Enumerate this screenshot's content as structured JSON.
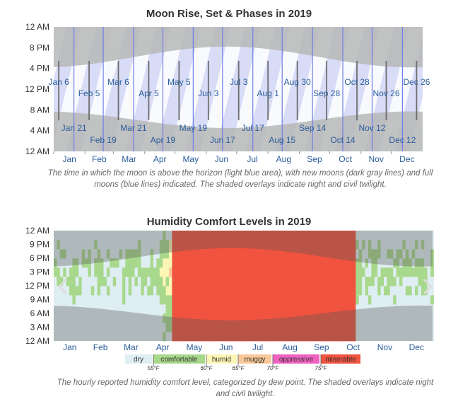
{
  "chart_data": [
    {
      "type": "area",
      "title": "Moon Rise, Set & Phases in 2019",
      "y_tick_labels": [
        "12 AM",
        "8 PM",
        "4 PM",
        "12 PM",
        "8 AM",
        "4 AM",
        "12 AM"
      ],
      "x_tick_labels": [
        "Jan",
        "Feb",
        "Mar",
        "Apr",
        "May",
        "Jun",
        "Jul",
        "Aug",
        "Sep",
        "Oct",
        "Nov",
        "Dec"
      ],
      "new_moons": [
        "Jan 6",
        "Feb 5",
        "Mar 6",
        "Apr 5",
        "May 5",
        "Jun 3",
        "Jul 3",
        "Aug 1",
        "Aug 30",
        "Sep 28",
        "Oct 28",
        "Nov 26",
        "Dec 26"
      ],
      "full_moons": [
        "Jan 21",
        "Feb 19",
        "Mar 21",
        "Apr 19",
        "May 19",
        "Jun 17",
        "Jul 17",
        "Aug 15",
        "Sep 14",
        "Oct 14",
        "Nov 12",
        "Dec 12"
      ],
      "caption": "The time in which the moon is above the horizon (light blue area), with new moons (dark gray lines) and full moons (blue lines) indicated. The shaded overlays indicate night and civil twilight.",
      "colors": {
        "moon_up": "#d8dcf7",
        "night": "#b7b7b7",
        "new_moon": "#6d6d6d",
        "full_moon": "#6f7fe6"
      }
    },
    {
      "type": "heatmap",
      "title": "Humidity Comfort Levels in 2019",
      "y_tick_labels": [
        "12 AM",
        "9 PM",
        "6 PM",
        "3 PM",
        "12 PM",
        "9 AM",
        "6 AM",
        "3 AM",
        "12 AM"
      ],
      "x_tick_labels": [
        "Jan",
        "Feb",
        "Mar",
        "Apr",
        "May",
        "Jun",
        "Jul",
        "Aug",
        "Sep",
        "Oct",
        "Nov",
        "Dec"
      ],
      "legend": [
        {
          "label": "dry",
          "color": "#dfeef2"
        },
        {
          "label": "comfortable",
          "color": "#a8d88c"
        },
        {
          "label": "humid",
          "color": "#fbf6b4"
        },
        {
          "label": "muggy",
          "color": "#f9c89a"
        },
        {
          "label": "oppressive",
          "color": "#f062c0"
        },
        {
          "label": "miserable",
          "color": "#f0533f"
        }
      ],
      "thresholds": [
        "55°F",
        "60°F",
        "65°F",
        "70°F",
        "75°F"
      ],
      "caption": "The hourly reported humidity comfort level, categorized by dew point. The shaded overlays indicate night and civil twilight."
    }
  ]
}
